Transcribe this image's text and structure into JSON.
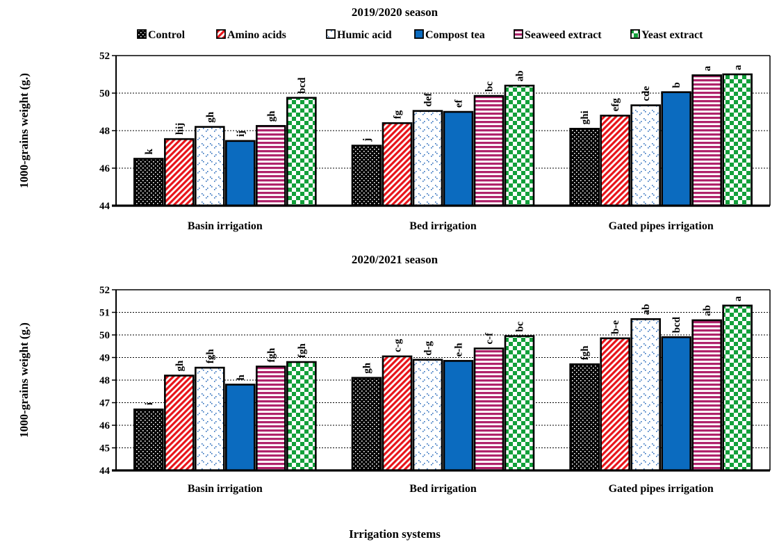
{
  "chart_data": [
    {
      "type": "bar",
      "title": "2019/2020 season",
      "ylabel": "1000-grains weight (g.)",
      "xlabel": "",
      "ylim": [
        44,
        52
      ],
      "yticks": [
        44,
        46,
        48,
        50,
        52
      ],
      "grid": true,
      "legend_position": "top",
      "categories": [
        "Basin irrigation",
        "Bed irrigation",
        "Gated pipes irrigation"
      ],
      "series": [
        {
          "name": "Control",
          "values": [
            46.5,
            47.2,
            48.1
          ],
          "letters": [
            "k",
            "j",
            "ghi"
          ]
        },
        {
          "name": "Amino acids",
          "values": [
            47.55,
            48.4,
            48.8
          ],
          "letters": [
            "hij",
            "fg",
            "efg"
          ]
        },
        {
          "name": "Humic acid",
          "values": [
            48.2,
            49.05,
            49.35
          ],
          "letters": [
            "gh",
            "def",
            "cde"
          ]
        },
        {
          "name": "Compost tea",
          "values": [
            47.45,
            49.0,
            50.05
          ],
          "letters": [
            "ij",
            "ef",
            "b"
          ]
        },
        {
          "name": "Seaweed extract",
          "values": [
            48.25,
            49.85,
            50.95
          ],
          "letters": [
            "gh",
            "bc",
            "a"
          ]
        },
        {
          "name": "Yeast extract",
          "values": [
            49.75,
            50.4,
            51.0
          ],
          "letters": [
            "bcd",
            "ab",
            "a"
          ]
        }
      ]
    },
    {
      "type": "bar",
      "title": "2020/2021 season",
      "ylabel": "1000-grains weight (g.)",
      "xlabel": "Irrigation systems",
      "ylim": [
        44,
        52
      ],
      "yticks": [
        44,
        45,
        46,
        47,
        48,
        49,
        50,
        51,
        52
      ],
      "grid": true,
      "categories": [
        "Basin irrigation",
        "Bed irrigation",
        "Gated pipes irrigation"
      ],
      "series": [
        {
          "name": "Control",
          "values": [
            46.7,
            48.1,
            48.7
          ],
          "letters": [
            "i",
            "gh",
            "fgh"
          ]
        },
        {
          "name": "Amino acids",
          "values": [
            48.2,
            49.05,
            49.85
          ],
          "letters": [
            "gh",
            "c-g",
            "b-e"
          ]
        },
        {
          "name": "Humic acid",
          "values": [
            48.55,
            48.9,
            50.7
          ],
          "letters": [
            "fgh",
            "d-g",
            "ab"
          ]
        },
        {
          "name": "Compost tea",
          "values": [
            47.8,
            48.85,
            49.9
          ],
          "letters": [
            "h",
            "e-h",
            "bcd"
          ]
        },
        {
          "name": "Seaweed extract",
          "values": [
            48.6,
            49.4,
            50.65
          ],
          "letters": [
            "fgh",
            "c-f",
            "ab"
          ]
        },
        {
          "name": "Yeast extract",
          "values": [
            48.8,
            49.95,
            51.3
          ],
          "letters": [
            "fgh",
            "bc",
            "a"
          ]
        }
      ]
    }
  ]
}
